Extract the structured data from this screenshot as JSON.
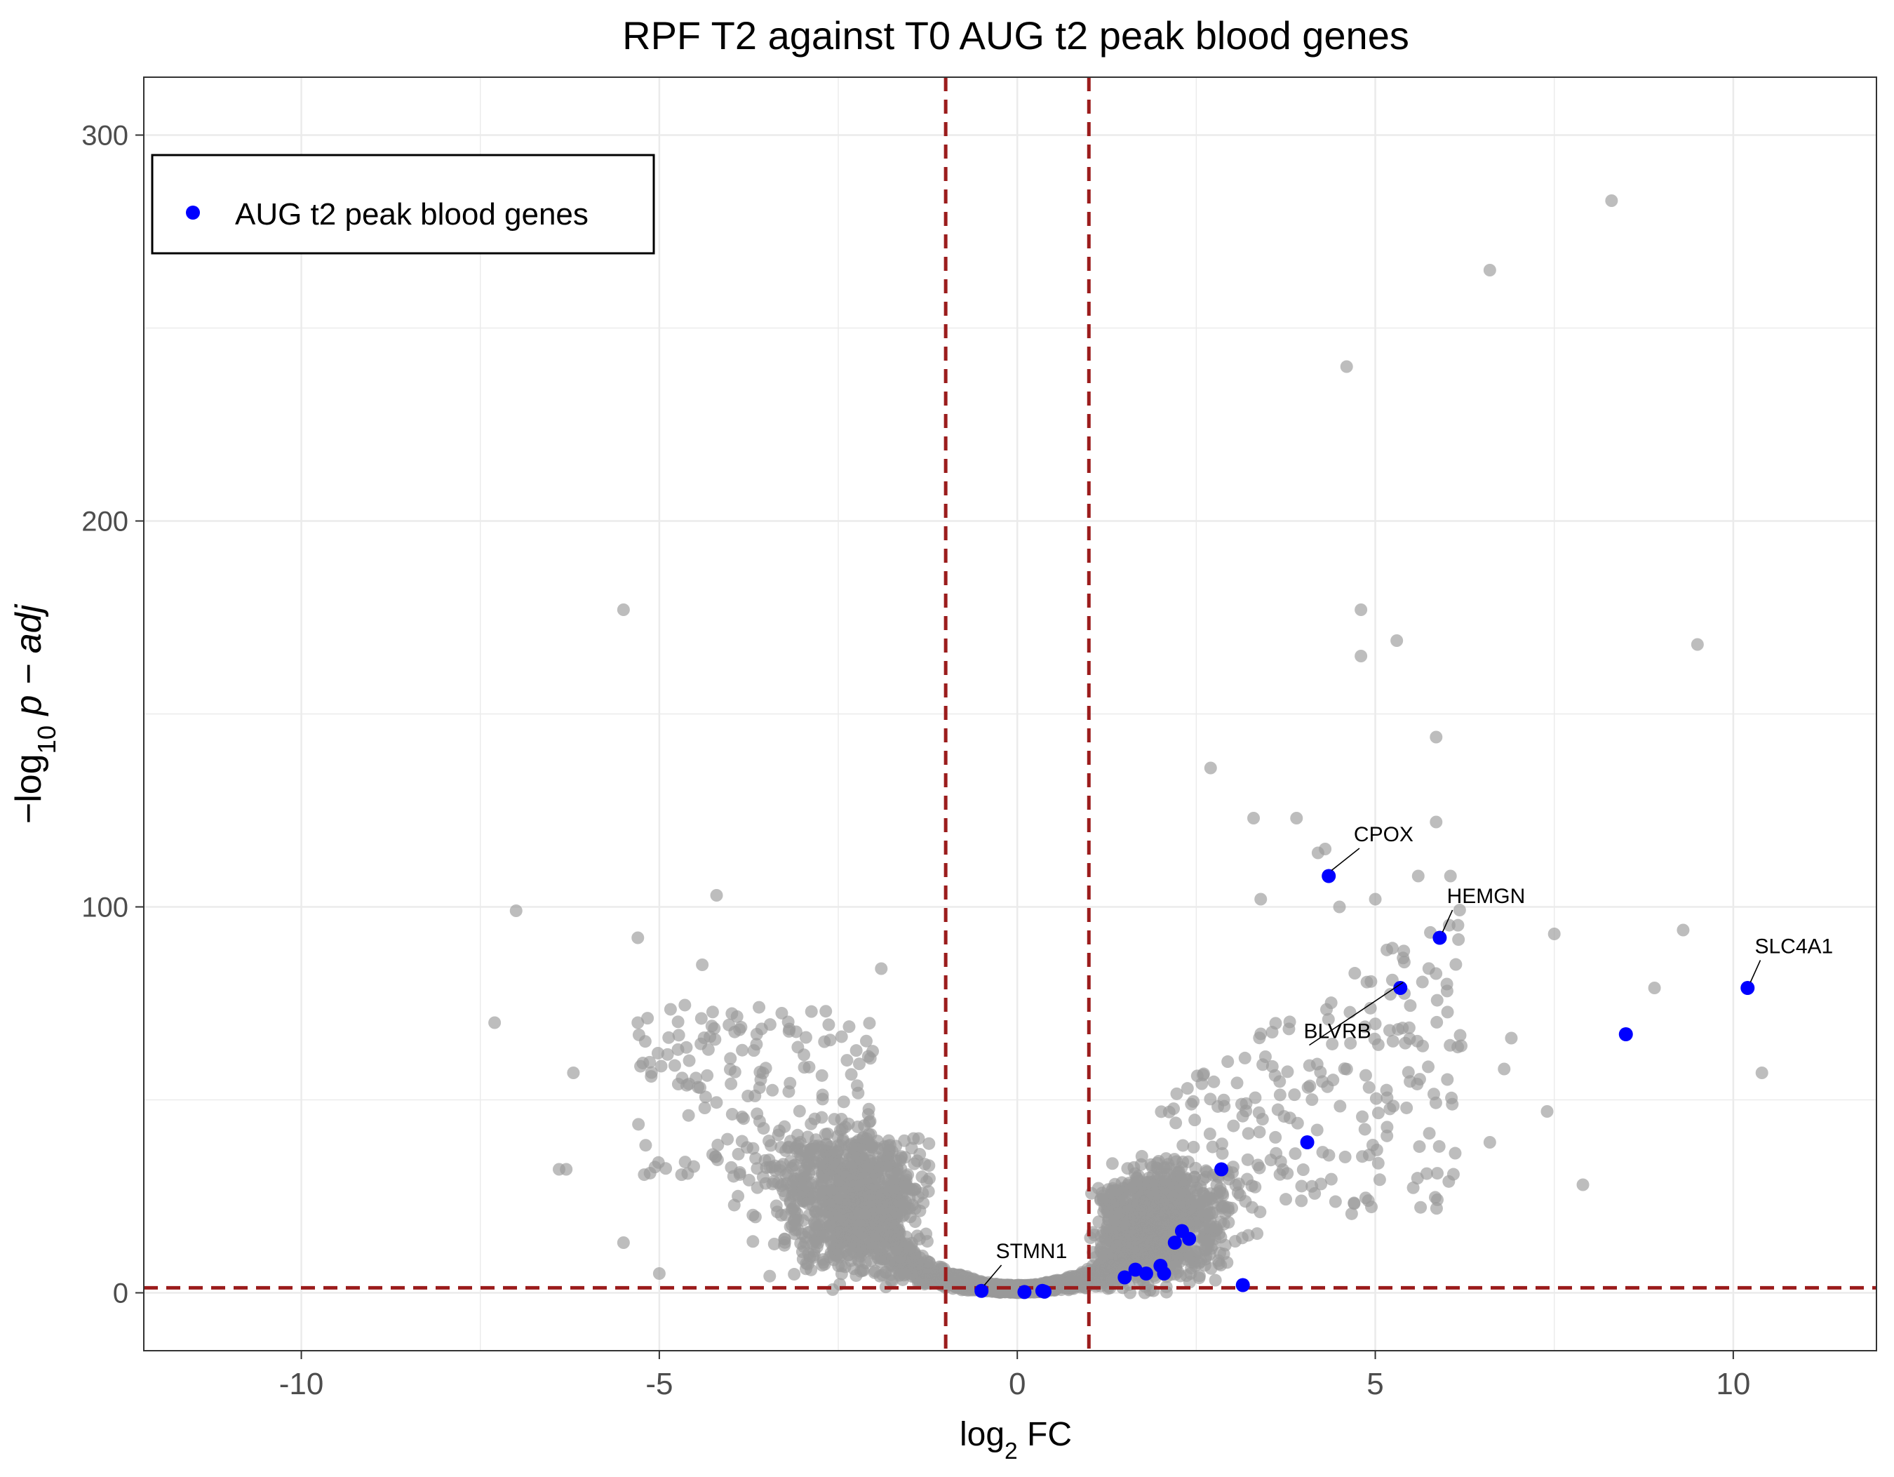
{
  "chart_data": {
    "type": "scatter",
    "title": "RPF T2 against T0 AUG t2 peak blood genes",
    "xlabel": {
      "prefix": "log",
      "sub": "2",
      "suffix": " FC"
    },
    "ylabel": {
      "prefix": "−log",
      "sub": "10",
      "suffix": " p − adj"
    },
    "xlim": [
      -12.2,
      12.0
    ],
    "ylim": [
      -15,
      315
    ],
    "x_ticks": [
      -10,
      -5,
      0,
      5,
      10
    ],
    "y_ticks": [
      0,
      100,
      200,
      300
    ],
    "grid": true,
    "thresholds": {
      "vlines": [
        -1,
        1
      ],
      "hline": 1.3,
      "color": "#9b1c1c"
    },
    "legend": {
      "position": "top-left",
      "entries": [
        "AUG t2 peak blood genes"
      ]
    },
    "colors": {
      "background_points": "#999999",
      "highlight_points": "#0000ff"
    },
    "highlighted_series": {
      "name": "AUG t2 peak blood genes",
      "points": [
        [
          4.35,
          108
        ],
        [
          5.9,
          92
        ],
        [
          5.35,
          79
        ],
        [
          10.2,
          79
        ],
        [
          8.5,
          67
        ],
        [
          4.05,
          39
        ],
        [
          2.85,
          32
        ],
        [
          2.3,
          16
        ],
        [
          2.4,
          14
        ],
        [
          2.2,
          13
        ],
        [
          2.0,
          7
        ],
        [
          1.65,
          6
        ],
        [
          1.8,
          5
        ],
        [
          2.05,
          5
        ],
        [
          1.5,
          4
        ],
        [
          3.15,
          2
        ],
        [
          -0.5,
          0.5
        ],
        [
          0.1,
          0.2
        ],
        [
          0.35,
          0.5
        ],
        [
          0.38,
          0.3
        ]
      ]
    },
    "annotations": [
      {
        "label": "CPOX",
        "point": [
          4.35,
          108
        ],
        "text_at": [
          4.7,
          117
        ]
      },
      {
        "label": "HEMGN",
        "point": [
          5.9,
          92
        ],
        "text_at": [
          6.0,
          101
        ]
      },
      {
        "label": "SLC4A1",
        "point": [
          10.2,
          79
        ],
        "text_at": [
          10.3,
          88
        ]
      },
      {
        "label": "BLVRB",
        "point": [
          5.35,
          79
        ],
        "text_at": [
          4.0,
          66
        ]
      },
      {
        "label": "STMN1",
        "point": [
          -0.5,
          0.5
        ],
        "text_at": [
          -0.3,
          9
        ]
      }
    ],
    "background_series": {
      "notable_points": [
        [
          8.3,
          283
        ],
        [
          6.6,
          265
        ],
        [
          4.6,
          240
        ],
        [
          -5.5,
          177
        ],
        [
          4.8,
          177
        ],
        [
          5.3,
          169
        ],
        [
          4.8,
          165
        ],
        [
          9.5,
          168
        ],
        [
          5.85,
          144
        ],
        [
          2.7,
          136
        ],
        [
          3.3,
          123
        ],
        [
          3.9,
          123
        ],
        [
          5.85,
          122
        ],
        [
          4.2,
          114
        ],
        [
          4.3,
          115
        ],
        [
          5.6,
          108
        ],
        [
          6.05,
          108
        ],
        [
          -4.2,
          103
        ],
        [
          -7.0,
          99
        ],
        [
          4.5,
          100
        ],
        [
          5.0,
          102
        ],
        [
          3.4,
          102
        ],
        [
          7.5,
          93
        ],
        [
          9.3,
          94
        ],
        [
          -5.3,
          92
        ],
        [
          -4.4,
          85
        ],
        [
          -1.9,
          84
        ],
        [
          8.9,
          79
        ],
        [
          6.0,
          80
        ],
        [
          -7.3,
          70
        ],
        [
          -5.3,
          70
        ],
        [
          6.9,
          66
        ],
        [
          6.2,
          64
        ],
        [
          5.2,
          68
        ],
        [
          -6.2,
          57
        ],
        [
          -6.4,
          32
        ],
        [
          -6.3,
          32
        ],
        [
          10.4,
          57
        ],
        [
          6.8,
          58
        ],
        [
          7.4,
          47
        ],
        [
          6.6,
          39
        ],
        [
          7.9,
          28
        ],
        [
          -5.5,
          13
        ],
        [
          -5.0,
          5
        ]
      ]
    }
  }
}
